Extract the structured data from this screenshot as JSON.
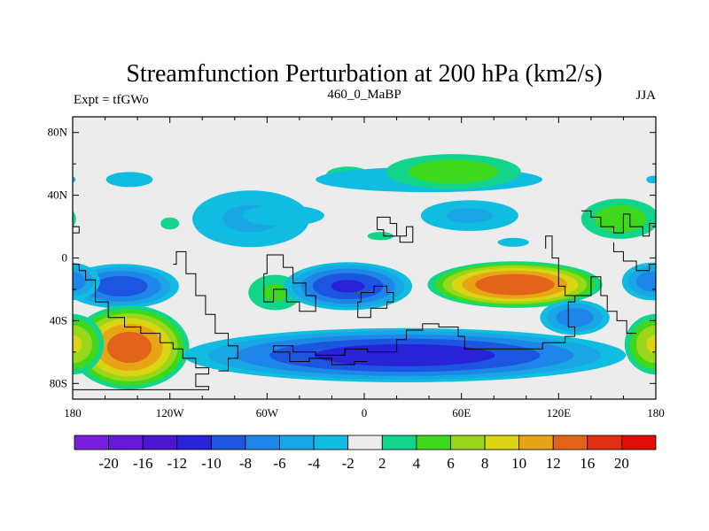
{
  "chart_data": {
    "type": "heatmap",
    "title": "Streamfunction Perturbation at 200 hPa (km2/s)",
    "subtitle_left": "Expt = tfGWo",
    "subtitle_center": "460_0_MaBP",
    "subtitle_right": "JJA",
    "xlim": [
      -180,
      180
    ],
    "ylim": [
      -90,
      90
    ],
    "x_ticks": [
      {
        "value": -180,
        "label": "180"
      },
      {
        "value": -120,
        "label": "120W"
      },
      {
        "value": -60,
        "label": "60W"
      },
      {
        "value": 0,
        "label": "0"
      },
      {
        "value": 60,
        "label": "60E"
      },
      {
        "value": 120,
        "label": "120E"
      },
      {
        "value": 180,
        "label": "180"
      }
    ],
    "y_ticks": [
      {
        "value": 80,
        "label": "80N"
      },
      {
        "value": 40,
        "label": "40N"
      },
      {
        "value": 0,
        "label": "0"
      },
      {
        "value": -40,
        "label": "40S"
      },
      {
        "value": -80,
        "label": "80S"
      }
    ],
    "colorbar": {
      "labels": [
        "-20",
        "-16",
        "-12",
        "-10",
        "-8",
        "-6",
        "-4",
        "-2",
        "2",
        "4",
        "6",
        "8",
        "10",
        "12",
        "16",
        "20"
      ],
      "colors": [
        "#7a1fe0",
        "#6418d8",
        "#4b16d0",
        "#2a22d8",
        "#1c55e0",
        "#1e86e8",
        "#18a6e4",
        "#10bce0",
        "#ececec",
        "#12d48a",
        "#3ed81c",
        "#9ad61a",
        "#dad412",
        "#e6a416",
        "#e2641a",
        "#e23010",
        "#e00c0a"
      ]
    },
    "features": [
      {
        "name": "pos-NH-central-pacific",
        "lon": -120,
        "lat": 22,
        "a": 12,
        "b": 8,
        "value": 2
      },
      {
        "name": "neg-NH-north-pacific",
        "lon": -145,
        "lat": 50,
        "a": 30,
        "b": 10,
        "value": -2
      },
      {
        "name": "neg-NH-north-america",
        "lon": -70,
        "lat": 25,
        "a": 48,
        "b": 24,
        "value": -4
      },
      {
        "name": "neg-NH-east-pacific",
        "lon": -50,
        "lat": 27,
        "a": 38,
        "b": 10,
        "value": -3
      },
      {
        "name": "pos-NH-north-atlantic-west",
        "lon": -10,
        "lat": 53,
        "a": 18,
        "b": 7,
        "value": 4
      },
      {
        "name": "neg-NH-atlantic",
        "lon": 40,
        "lat": 50,
        "a": 105,
        "b": 12,
        "value": -3
      },
      {
        "name": "pos-NH-eurasia",
        "lon": 55,
        "lat": 55,
        "a": 52,
        "b": 14,
        "value": 5
      },
      {
        "name": "neg-NH-europe",
        "lon": 65,
        "lat": 27,
        "a": 40,
        "b": 13,
        "value": -4
      },
      {
        "name": "pos-NH-africa",
        "lon": 10,
        "lat": 14,
        "a": 12,
        "b": 4,
        "value": 3
      },
      {
        "name": "neg-NH-arabia",
        "lon": 92,
        "lat": 10,
        "a": 20,
        "b": 6,
        "value": -2
      },
      {
        "name": "pos-NH-east-asia",
        "lon": 158,
        "lat": 25,
        "a": 30,
        "b": 16,
        "value": 5
      },
      {
        "name": "neg-NH-far-east",
        "lon": 178,
        "lat": 50,
        "a": 8,
        "b": 5,
        "value": -2
      },
      {
        "name": "neg-SH-south-pacific",
        "lon": -150,
        "lat": -18,
        "a": 40,
        "b": 16,
        "value": -9
      },
      {
        "name": "pos-SH-south-pacific",
        "lon": -145,
        "lat": -57,
        "a": 40,
        "b": 29,
        "value": 13
      },
      {
        "name": "pos-SH-south-america",
        "lon": -55,
        "lat": -22,
        "a": 22,
        "b": 15,
        "value": 4
      },
      {
        "name": "neg-SH-south-atlantic",
        "lon": -10,
        "lat": -18,
        "a": 44,
        "b": 17,
        "value": -10
      },
      {
        "name": "neg-SH-southern-ocean",
        "lon": 25,
        "lat": -62,
        "a": 150,
        "b": 19,
        "value": -11
      },
      {
        "name": "pos-SH-indian-ocean",
        "lon": 93,
        "lat": -17,
        "a": 58,
        "b": 16,
        "value": 14
      },
      {
        "name": "neg-SH-australia",
        "lon": 130,
        "lat": -38,
        "a": 25,
        "b": 13,
        "value": -7
      },
      {
        "name": "neg-SH-west-pacific",
        "lon": 178,
        "lat": -15,
        "a": 22,
        "b": 14,
        "value": -7
      },
      {
        "name": "pos-SH-east-pacific",
        "lon": 180,
        "lat": -55,
        "a": 22,
        "b": 22,
        "value": 8
      }
    ]
  }
}
